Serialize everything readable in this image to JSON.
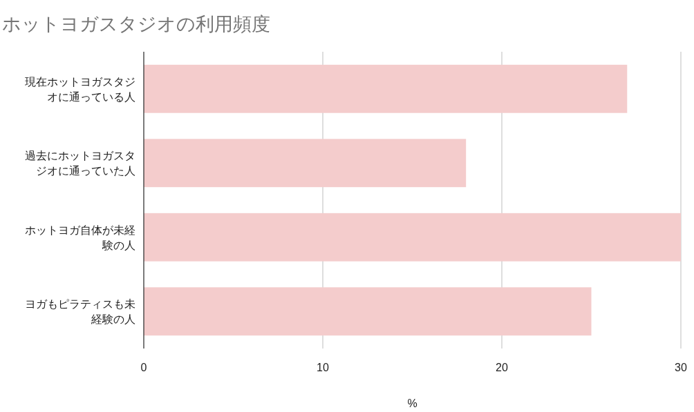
{
  "chart_data": {
    "type": "bar",
    "orientation": "horizontal",
    "title": "ホットヨガスタジオの利用頻度",
    "xlabel": "%",
    "categories": [
      "現在ホットヨガスタジオに通っている人",
      "過去にホットヨガスタジオに通っていた人",
      "ホットヨガ自体が未経験の人",
      "ヨガもピラティスも未経験の人"
    ],
    "values": [
      27,
      18,
      30,
      25
    ],
    "color": "#f4cccc",
    "xlim": [
      0,
      30
    ],
    "xticks": [
      0,
      10,
      20,
      30
    ],
    "grid": "x"
  }
}
